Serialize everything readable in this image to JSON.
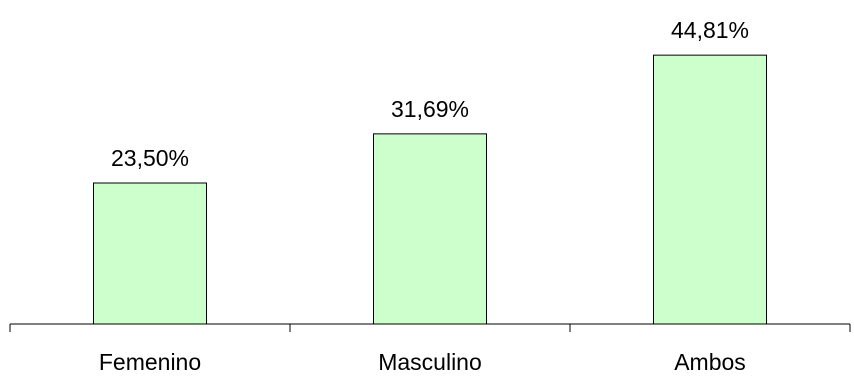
{
  "chart_data": {
    "type": "bar",
    "categories": [
      "Femenino",
      "Masculino",
      "Ambos"
    ],
    "values": [
      23.5,
      31.69,
      44.81
    ],
    "value_labels": [
      "23,50%",
      "31,69%",
      "44,81%"
    ],
    "title": "",
    "xlabel": "",
    "ylabel": "",
    "ylim": [
      0,
      50
    ],
    "grid": false,
    "legend": "none",
    "colors": {
      "bar_fill": "#ccffcc",
      "bar_stroke": "#000000",
      "axis": "#000000"
    }
  }
}
